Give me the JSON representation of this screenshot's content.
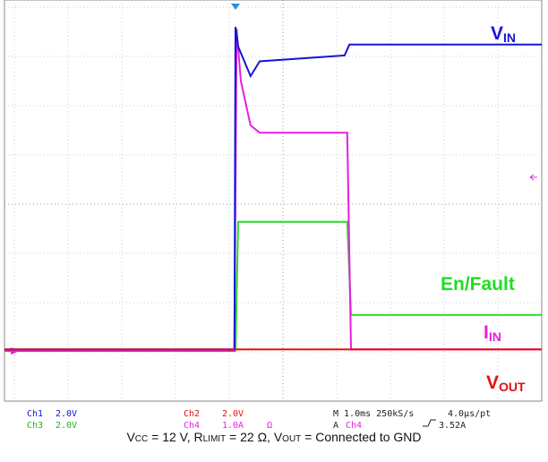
{
  "chart_data": {
    "type": "line",
    "xlim": [
      0,
      10
    ],
    "ylim": [
      -4,
      4
    ],
    "series": [
      {
        "color": "#1515d6",
        "label": {
          "text": "V",
          "subscript": "IN"
        },
        "x": [
          0,
          4.28,
          4.3,
          4.35,
          4.58,
          4.75,
          6.33,
          6.42,
          10
        ],
        "values": [
          -2.95,
          -2.95,
          3.6,
          3.2,
          2.6,
          2.9,
          3.02,
          3.24,
          3.24
        ]
      },
      {
        "color": "#e81ee0",
        "label": {
          "text": "I",
          "subscript": "IN"
        },
        "x": [
          0,
          4.28,
          4.32,
          4.4,
          4.58,
          4.75,
          6.38,
          6.45,
          10
        ],
        "values": [
          -2.98,
          -2.98,
          3.56,
          2.5,
          1.6,
          1.45,
          1.45,
          -2.95,
          -2.95
        ]
      },
      {
        "color": "#22dd22",
        "label": {
          "text": "En/Fault"
        },
        "x": [
          0,
          4.3,
          4.35,
          6.38,
          6.45,
          10
        ],
        "values": [
          -2.98,
          -2.98,
          -0.36,
          -0.36,
          -2.25,
          -2.25
        ]
      },
      {
        "color": "#e01010",
        "label": {
          "text": "V",
          "subscript": "OUT"
        },
        "x": [
          0,
          10
        ],
        "values": [
          -2.95,
          -2.95
        ]
      }
    ],
    "status": [
      [
        {
          "text": "Ch1",
          "color": "#1515d6"
        },
        {
          "text": "2.0V",
          "color": "#1515d6"
        },
        {
          "text": "Ch2",
          "color": "#e01010"
        },
        {
          "text": "2.0V",
          "color": "#e01010"
        },
        {
          "text": "M 1.0ms 250kS/s",
          "color": "#222"
        },
        {
          "text": "4.0µs/pt",
          "color": "#222"
        }
      ],
      [
        {
          "text": "Ch3",
          "color": "#18b818"
        },
        {
          "text": "2.0V",
          "color": "#18b818"
        },
        {
          "text": "Ch4",
          "color": "#e81ee0"
        },
        {
          "text": "1.0A",
          "color": "#e81ee0"
        },
        {
          "text": "Ω",
          "color": "#e81ee0"
        },
        {
          "text": "A",
          "color": "#222"
        },
        {
          "text": "Ch4",
          "color": "#e81ee0"
        },
        {
          "text": "3.52A",
          "color": "#222"
        }
      ]
    ],
    "caption": [
      "V",
      "CC",
      " = 12 V, R",
      "LIMIT",
      " = 22 Ω, V",
      "OUT",
      " = Connected to GND"
    ]
  }
}
